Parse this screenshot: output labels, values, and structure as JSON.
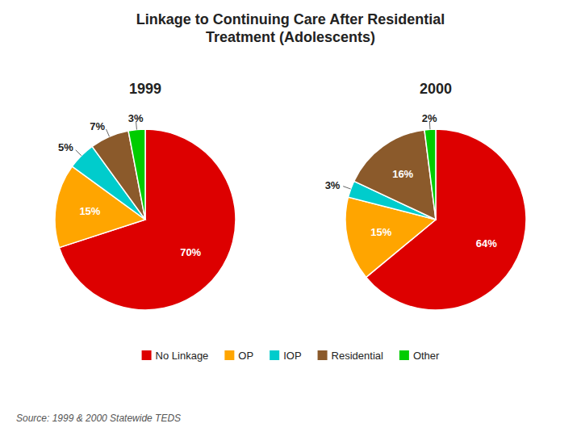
{
  "title": "Linkage to Continuing Care After Residential\nTreatment (Adolescents)",
  "annotations": [
    "Source:  1999 & 2000 Statewide TEDS"
  ],
  "chart_data": [
    {
      "type": "pie",
      "title": "1999",
      "categories": [
        "No Linkage",
        "OP",
        "IOP",
        "Residential",
        "Other"
      ],
      "values": [
        70,
        15,
        5,
        7,
        3
      ],
      "value_labels": [
        "70%",
        "15%",
        "5%",
        "7%",
        "3%"
      ],
      "colors": [
        "#dd0000",
        "#ffa500",
        "#00cccc",
        "#8B5a2b",
        "#00cc00"
      ],
      "data_labels": true,
      "legend": "bottom"
    },
    {
      "type": "pie",
      "title": "2000",
      "categories": [
        "No Linkage",
        "OP",
        "IOP",
        "Residential",
        "Other"
      ],
      "values": [
        64,
        15,
        3,
        16,
        2
      ],
      "value_labels": [
        "64%",
        "15%",
        "3%",
        "16%",
        "2%"
      ],
      "colors": [
        "#dd0000",
        "#ffa500",
        "#00cccc",
        "#8B5a2b",
        "#00cc00"
      ],
      "data_labels": true
    }
  ]
}
